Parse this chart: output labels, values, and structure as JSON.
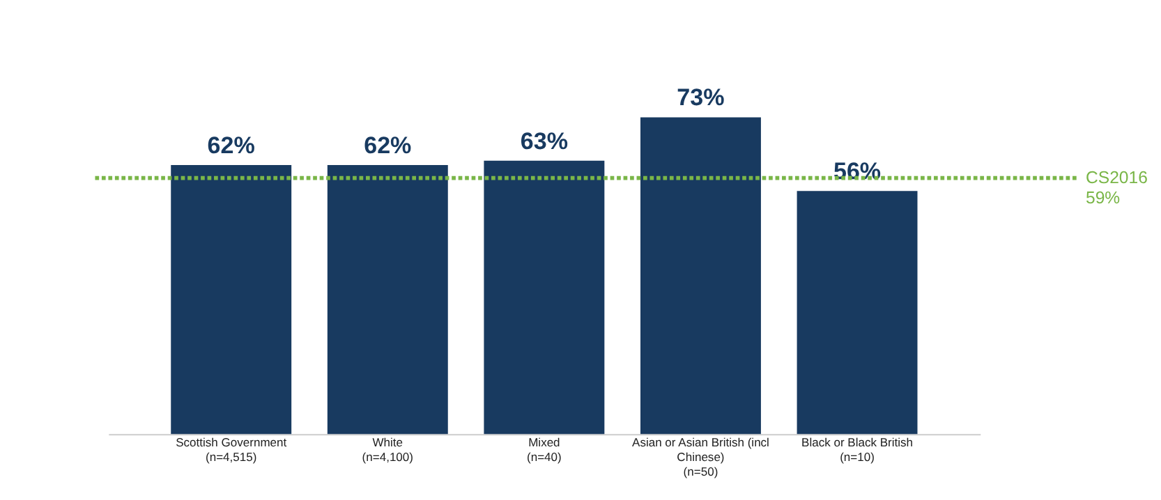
{
  "chart_data": {
    "type": "bar",
    "categories": [
      "Scottish Government\n(n=4,515)",
      "White\n(n=4,100)",
      "Mixed\n(n=40)",
      "Asian or Asian British (incl\nChinese)\n(n=50)",
      "Black or Black British\n(n=10)"
    ],
    "values": [
      62,
      62,
      63,
      73,
      56
    ],
    "color": "#183a60",
    "value_labels": [
      "62%",
      "62%",
      "63%",
      "73%",
      "56%"
    ],
    "tick_labels": "x",
    "ref_lines": [
      {
        "axis": "y",
        "value": 59,
        "label": "CS2016\n59%",
        "color": "#7ab648",
        "line_style": "dotted"
      }
    ]
  }
}
